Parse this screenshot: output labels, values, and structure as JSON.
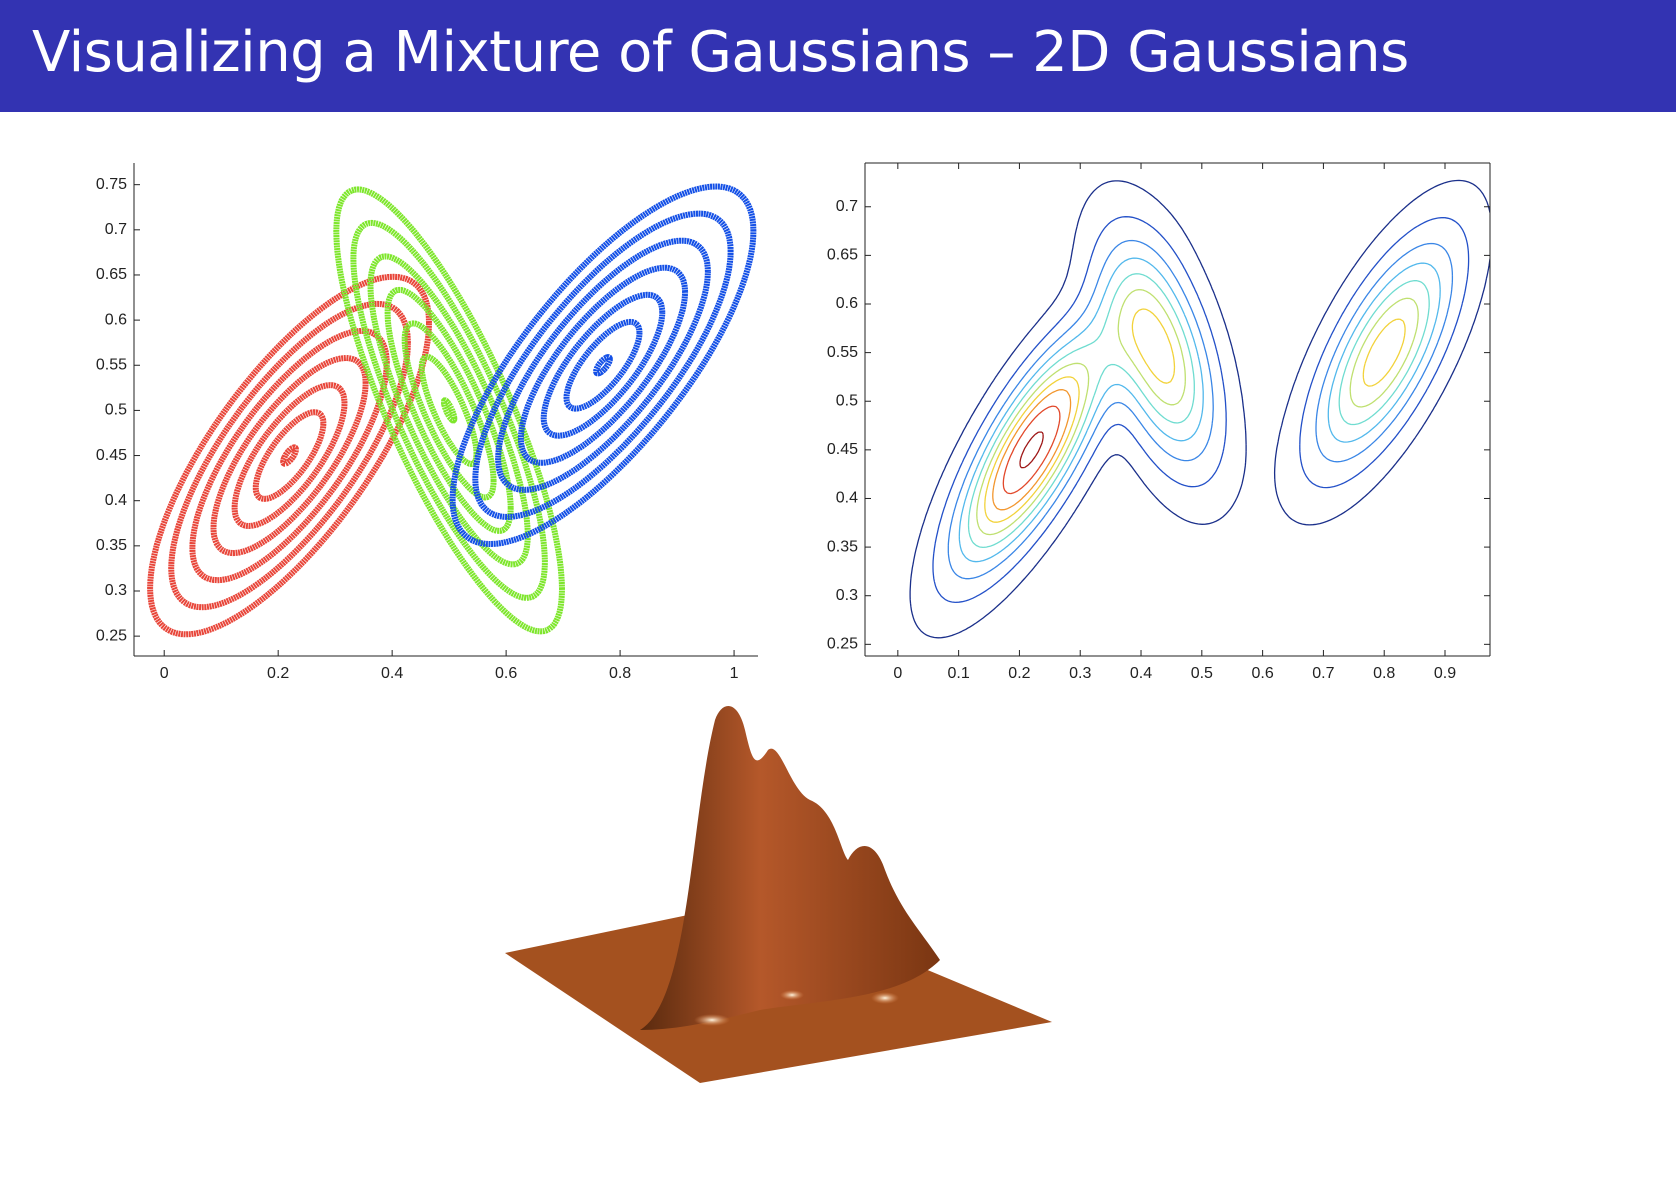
{
  "title": "Visualizing a Mixture of Gaussians – 2D Gaussians",
  "chart_data": [
    {
      "type": "ellipse-contour",
      "xlim": [
        -0.053,
        1.042
      ],
      "ylim": [
        0.228,
        0.774
      ],
      "xticks": [
        0,
        0.2,
        0.4,
        0.6,
        0.8,
        1
      ],
      "yticks": [
        0.25,
        0.3,
        0.35,
        0.4,
        0.45,
        0.5,
        0.55,
        0.6,
        0.65,
        0.7,
        0.75
      ],
      "levels": [
        0.15,
        0.8,
        1.3,
        1.8,
        2.3,
        2.8,
        3.3
      ],
      "series": [
        {
          "color": "#e8463a",
          "mean": [
            0.22,
            0.45
          ],
          "cov": [
            [
              0.0055,
              0.0033
            ],
            [
              0.0033,
              0.0036
            ]
          ]
        },
        {
          "color": "#7ee62c",
          "mean": [
            0.5,
            0.5
          ],
          "cov": [
            [
              0.0036,
              -0.0036
            ],
            [
              -0.0036,
              0.0055
            ]
          ]
        },
        {
          "color": "#1450e6",
          "mean": [
            0.77,
            0.55
          ],
          "cov": [
            [
              0.0064,
              0.0036
            ],
            [
              0.0036,
              0.0036
            ]
          ]
        }
      ]
    },
    {
      "type": "mixture-contour",
      "xlim": [
        -0.054,
        0.974
      ],
      "ylim": [
        0.238,
        0.745
      ],
      "xticks": [
        0,
        0.1,
        0.2,
        0.3,
        0.4,
        0.5,
        0.6,
        0.7,
        0.8,
        0.9
      ],
      "yticks": [
        0.25,
        0.3,
        0.35,
        0.4,
        0.45,
        0.5,
        0.55,
        0.6,
        0.65,
        0.7
      ],
      "levels": [
        0.04,
        0.12,
        0.22,
        0.32,
        0.42,
        0.52,
        0.62,
        0.72,
        0.84,
        0.97
      ],
      "colors": [
        "#1a2f8a",
        "#2350c8",
        "#3a86e6",
        "#52b8ec",
        "#6fdcd0",
        "#bfe070",
        "#f2d23a",
        "#f2962e",
        "#e2482a",
        "#9e1616"
      ],
      "series": [
        {
          "weight": 0.42,
          "mean": [
            0.22,
            0.45
          ],
          "cov": [
            [
              0.0062,
              0.0046
            ],
            [
              0.0046,
              0.0058
            ]
          ]
        },
        {
          "weight": 0.28,
          "mean": [
            0.43,
            0.55
          ],
          "cov": [
            [
              0.0035,
              -0.0022
            ],
            [
              -0.0022,
              0.0055
            ]
          ]
        },
        {
          "weight": 0.3,
          "mean": [
            0.8,
            0.55
          ],
          "cov": [
            [
              0.0055,
              0.0038
            ],
            [
              0.0038,
              0.0055
            ]
          ]
        }
      ]
    }
  ]
}
